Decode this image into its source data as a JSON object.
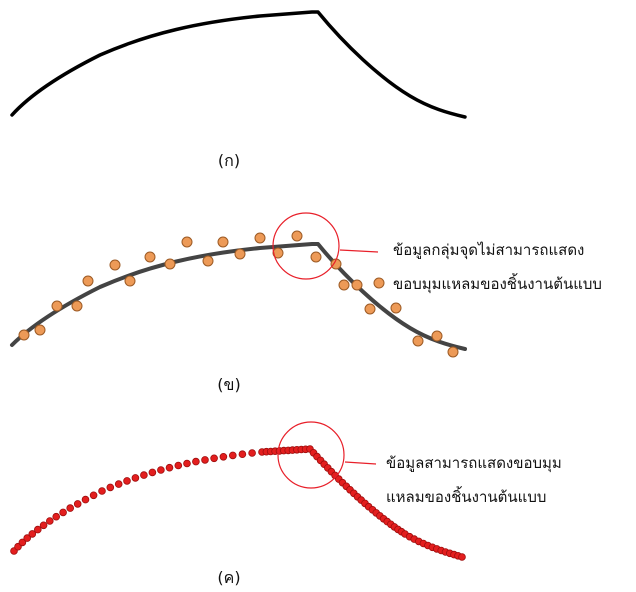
{
  "colors": {
    "profile_line": "#000000",
    "fitted_line": "#444444",
    "sparse_point_fill": "#ED9A57",
    "sparse_point_stroke": "#9C5A24",
    "dense_point_fill": "#E31E1E",
    "dense_point_stroke": "#9E0E0E",
    "highlight_circle": "#E8202A"
  },
  "panels": [
    {
      "id": "a",
      "label": "(ก)",
      "annotation": []
    },
    {
      "id": "b",
      "label": "(ข)",
      "annotation": [
        "ข้อมูลกลุ่มจุดไม่สามารถแสดง",
        "ขอบมุมแหลมของชิ้นงานต้นแบบ"
      ]
    },
    {
      "id": "c",
      "label": "(ค)",
      "annotation": [
        "ข้อมูลสามารถแสดงขอบมุม",
        "แหลมของชิ้นงานต้นแบบ"
      ]
    }
  ]
}
